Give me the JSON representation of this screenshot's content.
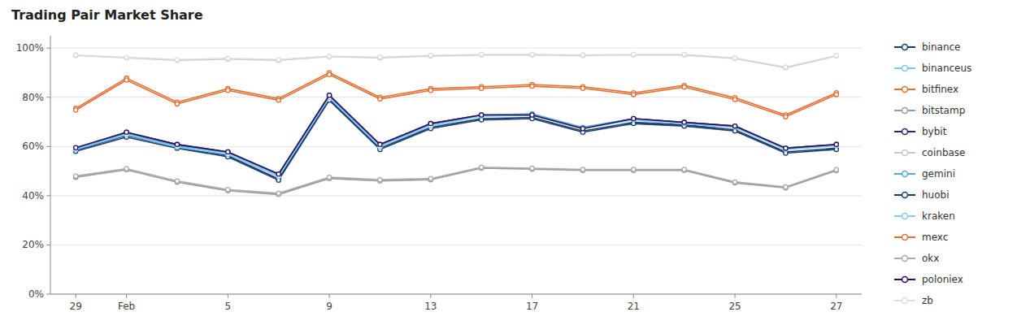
{
  "chart_data": {
    "type": "line",
    "title": "Trading Pair Market Share",
    "categories": [
      "29",
      "Feb",
      null,
      "5",
      null,
      "9",
      null,
      "13",
      null,
      "17",
      null,
      "21",
      null,
      "25",
      null,
      "27"
    ],
    "series": [
      {
        "name": "binance",
        "color": "#1a3a6b",
        "values": [
          0.585,
          0.645,
          0.598,
          0.563,
          0.468,
          0.793,
          0.593,
          0.678,
          0.713,
          0.718,
          0.663,
          0.698,
          0.688,
          0.668,
          0.578,
          0.593
        ]
      },
      {
        "name": "binanceus",
        "color": "#7dc7e8",
        "values": [
          0.59,
          0.653,
          0.603,
          0.573,
          0.483,
          0.803,
          0.603,
          0.688,
          0.723,
          0.728,
          0.673,
          0.708,
          0.693,
          0.678,
          0.588,
          0.603
        ]
      },
      {
        "name": "bitfinex",
        "color": "#e07035",
        "values": [
          0.755,
          0.878,
          0.78,
          0.835,
          0.795,
          0.9,
          0.8,
          0.835,
          0.843,
          0.852,
          0.843,
          0.818,
          0.848,
          0.798,
          0.728,
          0.818
        ]
      },
      {
        "name": "bitstamp",
        "color": "#999999",
        "values": [
          0.475,
          0.505,
          0.455,
          0.42,
          0.405,
          0.47,
          0.46,
          0.465,
          0.512,
          0.508,
          0.503,
          0.503,
          0.503,
          0.452,
          0.432,
          0.502
        ]
      },
      {
        "name": "bybit",
        "color": "#3a1a7a",
        "values": [
          0.593,
          0.658,
          0.608,
          0.578,
          0.488,
          0.808,
          0.608,
          0.693,
          0.728,
          0.728,
          0.673,
          0.713,
          0.698,
          0.683,
          0.593,
          0.608
        ]
      },
      {
        "name": "coinbase",
        "color": "#c8c8c8",
        "values": [
          0.97,
          0.96,
          0.95,
          0.955,
          0.95,
          0.965,
          0.96,
          0.968,
          0.972,
          0.972,
          0.97,
          0.972,
          0.972,
          0.958,
          0.92,
          0.968
        ]
      },
      {
        "name": "gemini",
        "color": "#55aadd",
        "values": [
          0.593,
          0.653,
          0.603,
          0.578,
          0.488,
          0.803,
          0.608,
          0.693,
          0.728,
          0.733,
          0.678,
          0.713,
          0.698,
          0.683,
          0.593,
          0.608
        ]
      },
      {
        "name": "huobi",
        "color": "#1a3d6e",
        "values": [
          0.58,
          0.638,
          0.593,
          0.558,
          0.463,
          0.788,
          0.588,
          0.673,
          0.708,
          0.713,
          0.658,
          0.693,
          0.683,
          0.663,
          0.573,
          0.588
        ]
      },
      {
        "name": "kraken",
        "color": "#88ccee",
        "values": [
          0.588,
          0.648,
          0.598,
          0.568,
          0.478,
          0.798,
          0.598,
          0.683,
          0.723,
          0.728,
          0.673,
          0.708,
          0.693,
          0.678,
          0.588,
          0.603
        ]
      },
      {
        "name": "mexc",
        "color": "#e07035",
        "values": [
          0.748,
          0.87,
          0.773,
          0.828,
          0.788,
          0.892,
          0.793,
          0.828,
          0.836,
          0.845,
          0.836,
          0.811,
          0.841,
          0.791,
          0.721,
          0.811
        ]
      },
      {
        "name": "okx",
        "color": "#aaaaaa",
        "values": [
          0.48,
          0.51,
          0.46,
          0.425,
          0.41,
          0.475,
          0.465,
          0.47,
          0.516,
          0.512,
          0.507,
          0.507,
          0.507,
          0.456,
          0.436,
          0.506
        ]
      },
      {
        "name": "poloniex",
        "color": "#2a1060",
        "values": [
          0.595,
          0.658,
          0.608,
          0.578,
          0.488,
          0.808,
          0.608,
          0.693,
          0.728,
          0.728,
          0.673,
          0.713,
          0.698,
          0.683,
          0.593,
          0.608
        ]
      },
      {
        "name": "zb",
        "color": "#dddddd",
        "values": [
          0.972,
          0.962,
          0.953,
          0.958,
          0.953,
          0.967,
          0.963,
          0.97,
          0.974,
          0.974,
          0.972,
          0.974,
          0.974,
          0.96,
          0.923,
          0.97
        ]
      }
    ],
    "ylim": [
      0,
      1.05
    ],
    "yticks": [
      {
        "value": 0.0,
        "label": "0%"
      },
      {
        "value": 0.2,
        "label": "20%"
      },
      {
        "value": 0.4,
        "label": "40%"
      },
      {
        "value": 0.6,
        "label": "60%"
      },
      {
        "value": 0.8,
        "label": "80%"
      },
      {
        "value": 1.0,
        "label": "100%"
      }
    ],
    "grid": true,
    "legend": "right",
    "marker": "circle"
  }
}
